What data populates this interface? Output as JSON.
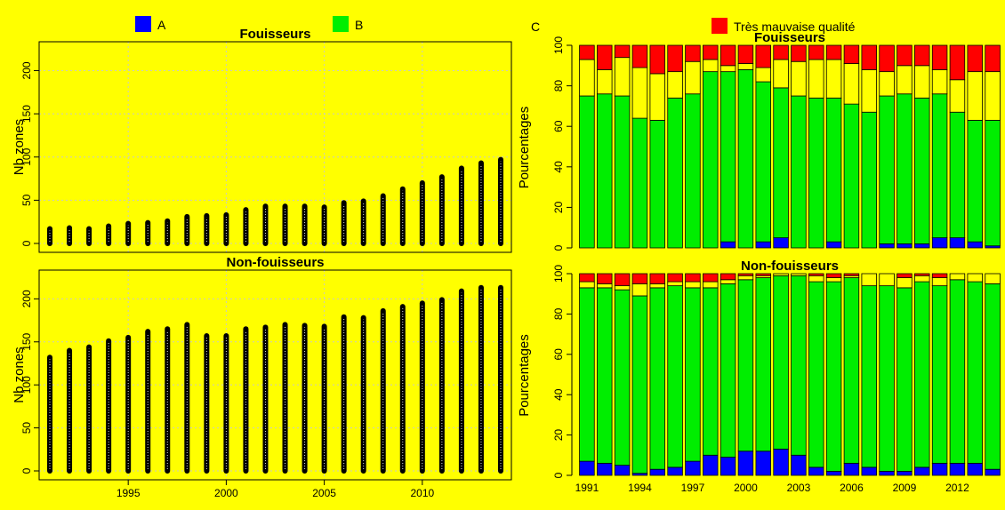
{
  "legend": {
    "items": [
      {
        "label": "A",
        "color": "#0000ff"
      },
      {
        "label": "B",
        "color": "#00ee00"
      },
      {
        "label": "C",
        "color": "#ffff00"
      },
      {
        "label": "Très mauvaise qualité",
        "color": "#ff0000"
      }
    ]
  },
  "chart_data": [
    {
      "type": "scatter",
      "title": "Fouisseurs",
      "ylabel": "Nb zones",
      "xlabel": "",
      "x": [
        1991,
        1992,
        1993,
        1994,
        1995,
        1996,
        1997,
        1998,
        1999,
        2000,
        2001,
        2002,
        2003,
        2004,
        2005,
        2006,
        2007,
        2008,
        2009,
        2010,
        2011,
        2012,
        2013,
        2014
      ],
      "ymax": [
        17,
        18,
        17,
        20,
        23,
        24,
        26,
        31,
        32,
        33,
        39,
        43,
        43,
        43,
        42,
        47,
        49,
        55,
        63,
        70,
        77,
        87,
        93,
        97
      ],
      "ylim": [
        0,
        220
      ],
      "xticks": [
        1995,
        2000,
        2005,
        2010
      ],
      "yticks": [
        0,
        50,
        100,
        150,
        200
      ],
      "grid": true
    },
    {
      "type": "scatter",
      "title": "Non-fouisseurs",
      "ylabel": "Nb zones",
      "xlabel": "",
      "x": [
        1991,
        1992,
        1993,
        1994,
        1995,
        1996,
        1997,
        1998,
        1999,
        2000,
        2001,
        2002,
        2003,
        2004,
        2005,
        2006,
        2007,
        2008,
        2009,
        2010,
        2011,
        2012,
        2013,
        2014
      ],
      "ymax": [
        132,
        140,
        144,
        151,
        155,
        162,
        165,
        170,
        157,
        157,
        165,
        167,
        170,
        169,
        168,
        179,
        178,
        186,
        191,
        195,
        199,
        209,
        213,
        213
      ],
      "ylim": [
        0,
        220
      ],
      "xticks": [
        1995,
        2000,
        2005,
        2010
      ],
      "yticks": [
        0,
        50,
        100,
        150,
        200
      ],
      "grid": true
    },
    {
      "type": "bar",
      "stacked": true,
      "title": "Fouisseurs",
      "ylabel": "Pourcentages",
      "categories": [
        "1991",
        "1992",
        "1993",
        "1994",
        "1995",
        "1996",
        "1997",
        "1998",
        "1999",
        "2000",
        "2001",
        "2002",
        "2003",
        "2004",
        "2005",
        "2006",
        "2007",
        "2008",
        "2009",
        "2010",
        "2011",
        "2012",
        "2013",
        "2014"
      ],
      "tick_labels": [
        "1991",
        "1994",
        "1997",
        "2000",
        "2003",
        "2006",
        "2009",
        "2012"
      ],
      "yticks": [
        0,
        20,
        40,
        60,
        80,
        100
      ],
      "ylim": [
        0,
        100
      ],
      "series": [
        {
          "name": "A",
          "color": "#0000ff",
          "values": [
            0,
            0,
            0,
            0,
            0,
            0,
            0,
            0,
            3,
            0,
            3,
            5,
            0,
            0,
            3,
            0,
            0,
            2,
            2,
            2,
            5,
            5,
            3,
            1
          ]
        },
        {
          "name": "B",
          "color": "#00ee00",
          "values": [
            75,
            76,
            75,
            64,
            63,
            74,
            76,
            87,
            84,
            88,
            79,
            74,
            75,
            74,
            71,
            71,
            67,
            73,
            74,
            72,
            71,
            62,
            60,
            62
          ]
        },
        {
          "name": "C",
          "color": "#ffff00",
          "values": [
            18,
            12,
            19,
            25,
            23,
            13,
            16,
            6,
            3,
            3,
            7,
            14,
            17,
            19,
            19,
            20,
            21,
            12,
            14,
            16,
            12,
            16,
            24,
            24
          ]
        },
        {
          "name": "Très mauvaise qualité",
          "color": "#ff0000",
          "values": [
            7,
            12,
            6,
            11,
            14,
            13,
            8,
            7,
            10,
            9,
            11,
            7,
            8,
            7,
            7,
            9,
            12,
            13,
            10,
            10,
            12,
            17,
            13,
            13
          ]
        }
      ]
    },
    {
      "type": "bar",
      "stacked": true,
      "title": "Non-fouisseurs",
      "ylabel": "Pourcentages",
      "categories": [
        "1991",
        "1992",
        "1993",
        "1994",
        "1995",
        "1996",
        "1997",
        "1998",
        "1999",
        "2000",
        "2001",
        "2002",
        "2003",
        "2004",
        "2005",
        "2006",
        "2007",
        "2008",
        "2009",
        "2010",
        "2011",
        "2012",
        "2013",
        "2014"
      ],
      "tick_labels": [
        "1991",
        "1994",
        "1997",
        "2000",
        "2003",
        "2006",
        "2009",
        "2012"
      ],
      "yticks": [
        0,
        20,
        40,
        60,
        80,
        100
      ],
      "ylim": [
        0,
        100
      ],
      "series": [
        {
          "name": "A",
          "color": "#0000ff",
          "values": [
            7,
            6,
            5,
            1,
            3,
            4,
            7,
            10,
            9,
            12,
            12,
            13,
            10,
            4,
            2,
            6,
            4,
            2,
            2,
            4,
            6,
            6,
            6,
            3
          ]
        },
        {
          "name": "B",
          "color": "#00ee00",
          "values": [
            86,
            87,
            87,
            88,
            90,
            90,
            86,
            83,
            86,
            85,
            86,
            86,
            89,
            92,
            94,
            92,
            90,
            92,
            91,
            92,
            88,
            91,
            90,
            92
          ]
        },
        {
          "name": "C",
          "color": "#ffff00",
          "values": [
            3,
            2,
            2,
            6,
            2,
            2,
            3,
            3,
            2,
            2,
            1,
            1,
            1,
            3,
            2,
            1,
            6,
            6,
            5,
            3,
            4,
            3,
            4,
            5
          ]
        },
        {
          "name": "Très mauvaise qualité",
          "color": "#ff0000",
          "values": [
            4,
            5,
            6,
            5,
            5,
            4,
            4,
            4,
            3,
            1,
            1,
            0,
            0,
            1,
            2,
            1,
            0,
            0,
            2,
            1,
            2,
            0,
            0,
            0
          ]
        }
      ]
    }
  ]
}
